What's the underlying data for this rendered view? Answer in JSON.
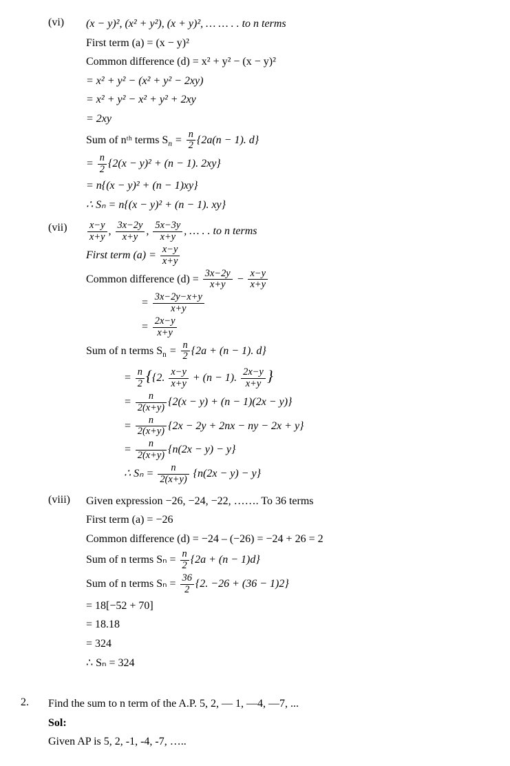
{
  "vi": {
    "roman": "(vi)",
    "seq": "(x − y)², (x² + y²), (x + y)², … … . . to n terms",
    "l1": "First term (a) = (x − y)²",
    "l2": "Common difference (d) = x² + y² − (x − y)²",
    "l3": "= x² + y² − (x² + y² − 2xy)",
    "l4": "= x² + y² − x² + y² + 2xy",
    "l5": "= 2xy",
    "l6a": "Sum of nᵗʰ terms S",
    "l6sub": "n",
    "l6b": " = ",
    "l6num": "n",
    "l6den": "2",
    "l6c": "{2a(n − 1). d}",
    "l7a": "= ",
    "l7num": "n",
    "l7den": "2",
    "l7b": "{2(x − y)² + (n − 1). 2xy}",
    "l8": "= n{(x − y)² + (n − 1)xy}",
    "l9": "∴ Sₙ = n{(x − y)² + (n − 1). xy}"
  },
  "vii": {
    "roman": "(vii)",
    "s1n": "x−y",
    "s1d": "x+y",
    "s2n": "3x−2y",
    "s2d": "x+y",
    "s3n": "5x−3y",
    "s3d": "x+y",
    "stail": ", … . . to n terms",
    "l1a": "First term (a) = ",
    "l1n": "x−y",
    "l1d": "x+y",
    "l2a": "Common difference (d) = ",
    "l2n1": "3x−2y",
    "l2d1": "x+y",
    "l2minus": " − ",
    "l2n2": "x−y",
    "l2d2": "x+y",
    "l3a": "= ",
    "l3n": "3x−2y−x+y",
    "l3d": "x+y",
    "l4a": "= ",
    "l4n": "2x−y",
    "l4d": "x+y",
    "l5a": "Sum of n terms S",
    "l5sub": "n",
    "l5b": " = ",
    "l5n": "n",
    "l5d": "2",
    "l5c": "{2a + (n − 1). d}",
    "l6a": "= ",
    "l6n1": "n",
    "l6d1": "2",
    "l6b": "{2. ",
    "l6n2": "x−y",
    "l6d2": "x+y",
    "l6c": " + (n − 1). ",
    "l6n3": "2x−y",
    "l6d3": "x+y",
    "l6d_close": "}",
    "l7a": "= ",
    "l7n": "n",
    "l7d": "2(x+y)",
    "l7b": "{2(x − y) + (n − 1)(2x − y)}",
    "l8a": "= ",
    "l8n": "n",
    "l8d": "2(x+y)",
    "l8b": "{2x − 2y + 2nx − ny − 2x + y}",
    "l9a": "= ",
    "l9n": "n",
    "l9d": "2(x+y)",
    "l9b": "{n(2x − y) − y}",
    "l10a": "∴ Sₙ = ",
    "l10n": "n",
    "l10d": "2(x+y)",
    "l10b": " {n(2x − y) − y}"
  },
  "viii": {
    "roman": "(viii)",
    "l1": "Given expression  −26, −24, −22, ……. To 36 terms",
    "l2": "First term (a) = −26",
    "l3": "Common difference (d) = −24 – (−26) = −24 + 26 = 2",
    "l4a": "Sum of n terms Sₙ = ",
    "l4n": "n",
    "l4d": "2",
    "l4b": "{2a + (n − 1)d}",
    "l5a": "Sum of n terms Sₙ = ",
    "l5n": "36",
    "l5d": "2",
    "l5b": "{2. −26 + (36 − 1)2}",
    "l6": "= 18[−52 + 70]",
    "l7": "= 18.18",
    "l8": "= 324",
    "l9": "∴ Sₙ = 324"
  },
  "q2": {
    "num": "2.",
    "question": "Find the sum to n term of the A.P. 5, 2, — 1, —4, —7, ...",
    "sol_label": "Sol:",
    "l1": "Given AP is 5, 2, -1, -4, -7, ….."
  }
}
